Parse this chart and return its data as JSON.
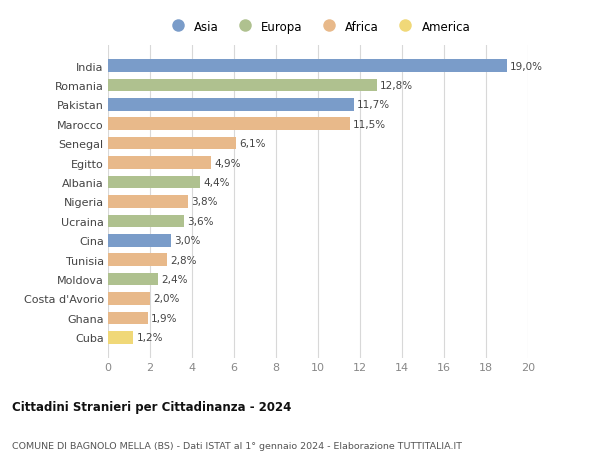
{
  "countries": [
    "India",
    "Romania",
    "Pakistan",
    "Marocco",
    "Senegal",
    "Egitto",
    "Albania",
    "Nigeria",
    "Ucraina",
    "Cina",
    "Tunisia",
    "Moldova",
    "Costa d'Avorio",
    "Ghana",
    "Cuba"
  ],
  "values": [
    19.0,
    12.8,
    11.7,
    11.5,
    6.1,
    4.9,
    4.4,
    3.8,
    3.6,
    3.0,
    2.8,
    2.4,
    2.0,
    1.9,
    1.2
  ],
  "labels": [
    "19,0%",
    "12,8%",
    "11,7%",
    "11,5%",
    "6,1%",
    "4,9%",
    "4,4%",
    "3,8%",
    "3,6%",
    "3,0%",
    "2,8%",
    "2,4%",
    "2,0%",
    "1,9%",
    "1,2%"
  ],
  "continents": [
    "Asia",
    "Europa",
    "Asia",
    "Africa",
    "Africa",
    "Africa",
    "Europa",
    "Africa",
    "Europa",
    "Asia",
    "Africa",
    "Europa",
    "Africa",
    "Africa",
    "America"
  ],
  "colors": {
    "Asia": "#7a9cc9",
    "Europa": "#afc18f",
    "Africa": "#e8b98a",
    "America": "#f0d878"
  },
  "legend_order": [
    "Asia",
    "Europa",
    "Africa",
    "America"
  ],
  "title1": "Cittadini Stranieri per Cittadinanza - 2024",
  "title2": "COMUNE DI BAGNOLO MELLA (BS) - Dati ISTAT al 1° gennaio 2024 - Elaborazione TUTTITALIA.IT",
  "xlim": [
    0,
    20
  ],
  "xticks": [
    0,
    2,
    4,
    6,
    8,
    10,
    12,
    14,
    16,
    18,
    20
  ],
  "bg_color": "#ffffff",
  "grid_color": "#d8d8d8"
}
